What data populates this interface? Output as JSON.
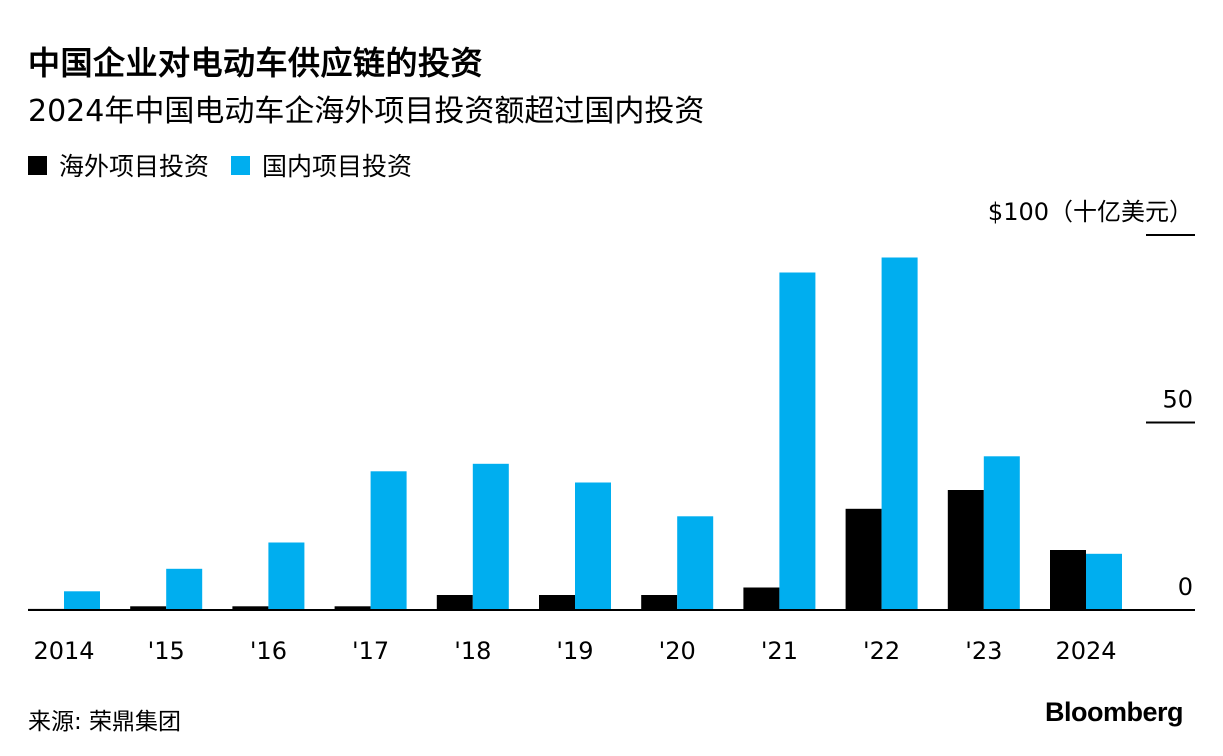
{
  "title": "中国企业对电动车供应链的投资",
  "subtitle": "2024年中国电动车企海外项目投资额超过国内投资",
  "legend": [
    {
      "label": "海外项目投资",
      "color": "#000000"
    },
    {
      "label": "国内项目投资",
      "color": "#00AEEF"
    }
  ],
  "source": "来源: 荣鼎集团",
  "brand": "Bloomberg",
  "chart_data": {
    "type": "bar",
    "categories": [
      "2014",
      "'15",
      "'16",
      "'17",
      "'18",
      "'19",
      "'20",
      "'21",
      "'22",
      "'23",
      "2024"
    ],
    "series": [
      {
        "name": "海外项目投资",
        "color": "#000000",
        "values": [
          0.3,
          1,
          1,
          1,
          4,
          4,
          4,
          6,
          27,
          32,
          16
        ]
      },
      {
        "name": "国内项目投资",
        "color": "#00AEEF",
        "values": [
          5,
          11,
          18,
          37,
          39,
          34,
          25,
          90,
          94,
          41,
          15
        ]
      }
    ],
    "yticks": [
      {
        "value": 0,
        "label": "0"
      },
      {
        "value": 50,
        "label": "50"
      },
      {
        "value": 100,
        "label": "$100（十亿美元）"
      }
    ],
    "ylim": [
      0,
      100
    ],
    "grid": false
  }
}
